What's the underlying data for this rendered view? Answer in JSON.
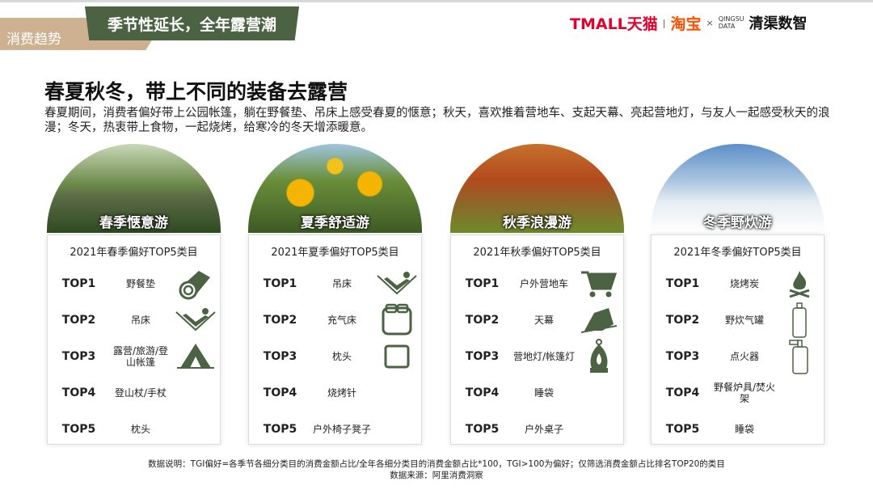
{
  "header": {
    "section_tag": "消费趋势",
    "subtitle": "季节性延长，全年露营潮",
    "logos": {
      "tmall": "TMALL天猫",
      "taobao": "淘宝",
      "x": "×",
      "qingu_top": "QINGSU",
      "qingu_bottom": "DATA",
      "qingqu": "清渠数智"
    }
  },
  "title": "春夏秋冬，带上不同的装备去露营",
  "description": "春夏期间，消费者偏好带上公园帐篷，躺在野餐垫、吊床上感受春夏的惬意；秋天，喜欢推着营地车、支起天幕、亮起营地灯，与友人一起感受秋天的浪漫；冬天，热衷带上食物，一起烧烤，给寒冷的冬天增添暖意。",
  "seasons": [
    {
      "label": "春季惬意游",
      "card_title": "2021年春季偏好TOP5类目",
      "rows": [
        {
          "rank": "TOP1",
          "item": "野餐垫",
          "icon": "rolled-mat-icon"
        },
        {
          "rank": "TOP2",
          "item": "吊床",
          "icon": "hammock-icon"
        },
        {
          "rank": "TOP3",
          "item": "露营/旅游/登山帐篷",
          "icon": "tent-icon"
        },
        {
          "rank": "TOP4",
          "item": "登山杖/手杖"
        },
        {
          "rank": "TOP5",
          "item": "枕头"
        }
      ]
    },
    {
      "label": "夏季舒适游",
      "card_title": "2021年夏季偏好TOP5类目",
      "rows": [
        {
          "rank": "TOP1",
          "item": "吊床",
          "icon": "hammock-icon"
        },
        {
          "rank": "TOP2",
          "item": "充气床",
          "icon": "bed-icon"
        },
        {
          "rank": "TOP3",
          "item": "枕头",
          "icon": "pillow-icon"
        },
        {
          "rank": "TOP4",
          "item": "烧烤针"
        },
        {
          "rank": "TOP5",
          "item": "户外椅子凳子"
        }
      ]
    },
    {
      "label": "秋季浪漫游",
      "card_title": "2021年秋季偏好TOP5类目",
      "rows": [
        {
          "rank": "TOP1",
          "item": "户外营地车",
          "icon": "cart-icon"
        },
        {
          "rank": "TOP2",
          "item": "天幕",
          "icon": "canopy-tent-icon"
        },
        {
          "rank": "TOP3",
          "item": "营地灯/帐篷灯",
          "icon": "lantern-icon"
        },
        {
          "rank": "TOP4",
          "item": "睡袋"
        },
        {
          "rank": "TOP5",
          "item": "户外桌子"
        }
      ]
    },
    {
      "label": "冬季野炊游",
      "card_title": "2021年冬季偏好TOP5类目",
      "rows": [
        {
          "rank": "TOP1",
          "item": "烧烤炭",
          "icon": "campfire-icon"
        },
        {
          "rank": "TOP2",
          "item": "野炊气罐",
          "icon": "gas-canister-icon"
        },
        {
          "rank": "TOP3",
          "item": "点火器",
          "icon": "lighter-spray-icon"
        },
        {
          "rank": "TOP4",
          "item": "野餐炉具/焚火架"
        },
        {
          "rank": "TOP5",
          "item": "睡袋"
        }
      ]
    }
  ],
  "footer": {
    "note": "数据说明：TGI偏好=各季节各细分类目的消费金额占比/全年各细分类目的消费金额占比*100，TGI>100为偏好；仅筛选消费金额占比排名TOP20的类目",
    "source": "数据来源：阿里消费洞察"
  },
  "colors": {
    "accent_green": "#4b6243",
    "tag_beige": "#cdb291",
    "tmall_red": "#e4002b",
    "taobao_orange": "#ff5000"
  }
}
